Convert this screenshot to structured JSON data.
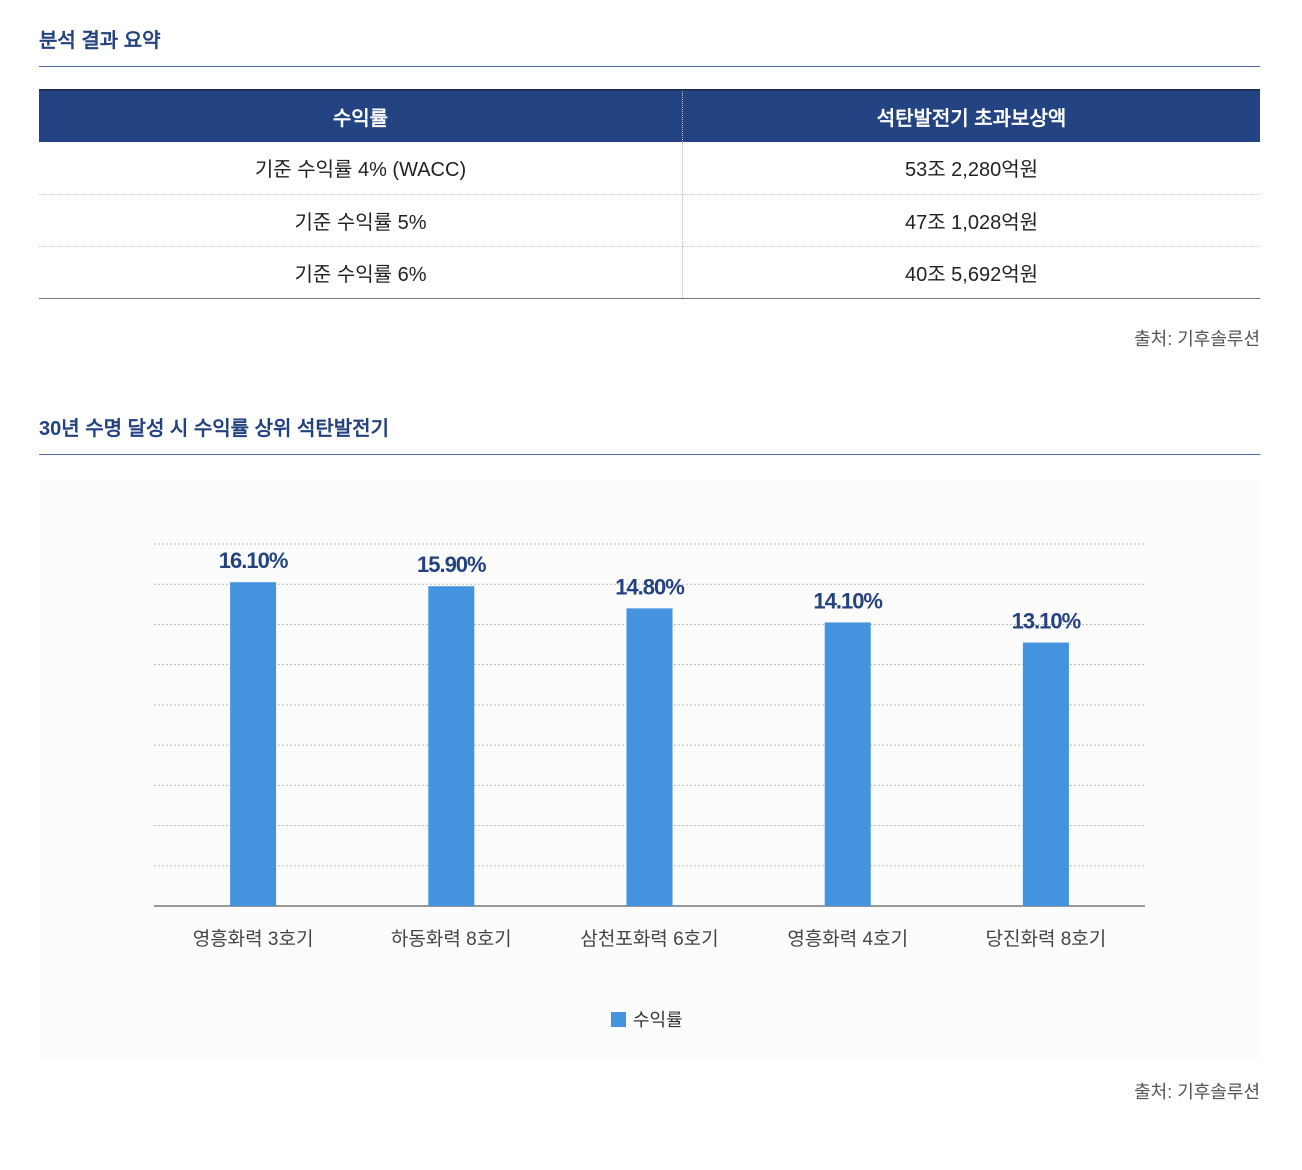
{
  "summary": {
    "title": "분석 결과 요약",
    "headers": [
      "수익률",
      "석탄발전기 초과보상액"
    ],
    "rows": [
      [
        "기준 수익률 4% (WACC)",
        "53조 2,280억원"
      ],
      [
        "기준 수익률 5%",
        "47조 1,028억원"
      ],
      [
        "기준 수익률 6%",
        "40조 5,692억원"
      ]
    ],
    "source": "출처: 기후솔루션"
  },
  "chart_section": {
    "title": "30년 수명 달성 시 수익률 상위 석탄발전기",
    "source": "출처: 기후솔루션"
  },
  "chart_data": {
    "type": "bar",
    "title": "30년 수명 달성 시 수익률 상위 석탄발전기",
    "categories": [
      "영흥화력 3호기",
      "하동화력 8호기",
      "삼천포화력 6호기",
      "영흥화력 4호기",
      "당진화력 8호기"
    ],
    "series": [
      {
        "name": "수익률",
        "values": [
          16.1,
          15.9,
          14.8,
          14.1,
          13.1
        ],
        "color": "#4493df"
      }
    ],
    "data_labels": [
      "16.10%",
      "15.90%",
      "14.80%",
      "14.10%",
      "13.10%"
    ],
    "ylim": [
      0,
      18
    ],
    "ytick_step": 2,
    "grid": true,
    "legend": "bottom",
    "xlabel": "",
    "ylabel": ""
  }
}
